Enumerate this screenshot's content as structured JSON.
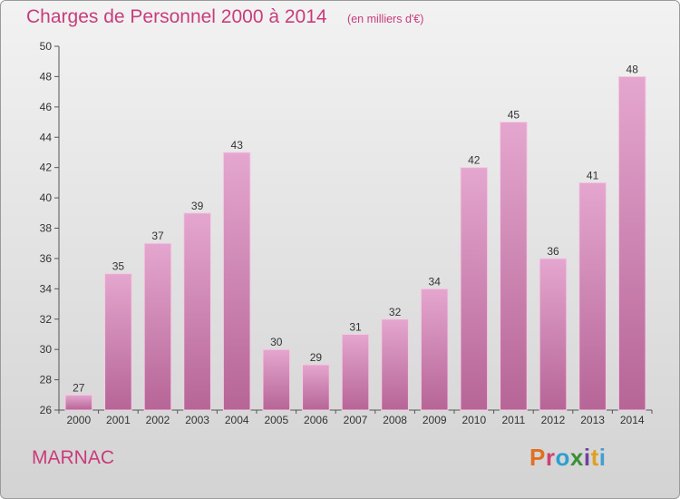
{
  "header": {
    "title": "Charges de Personnel 2000 à 2014",
    "unit_note": "(en milliers d'€)"
  },
  "commune": "MARNAC",
  "logo": {
    "text": "Proxiti",
    "colors": [
      "#e07020",
      "#d04070",
      "#2aa0d0",
      "#3a8f3a",
      "#7040a0",
      "#e0a020",
      "#40a0d0"
    ]
  },
  "colors": {
    "title": "#c93c7c",
    "bar_top": "#e4a6cf",
    "bar_bottom": "#b66596"
  },
  "chart_data": {
    "type": "bar",
    "title": "Charges de Personnel 2000 à 2014",
    "subtitle": "(en milliers d'€)",
    "categories": [
      "2000",
      "2001",
      "2002",
      "2003",
      "2004",
      "2005",
      "2006",
      "2007",
      "2008",
      "2009",
      "2010",
      "2011",
      "2012",
      "2013",
      "2014"
    ],
    "values": [
      27,
      35,
      37,
      39,
      43,
      30,
      29,
      31,
      32,
      34,
      42,
      45,
      36,
      41,
      48
    ],
    "ylim": [
      26,
      50
    ],
    "yticks": [
      26,
      28,
      30,
      32,
      34,
      36,
      38,
      40,
      42,
      44,
      46,
      48,
      50
    ],
    "xlabel": "",
    "ylabel": "",
    "grid": false,
    "data_labels": true
  }
}
